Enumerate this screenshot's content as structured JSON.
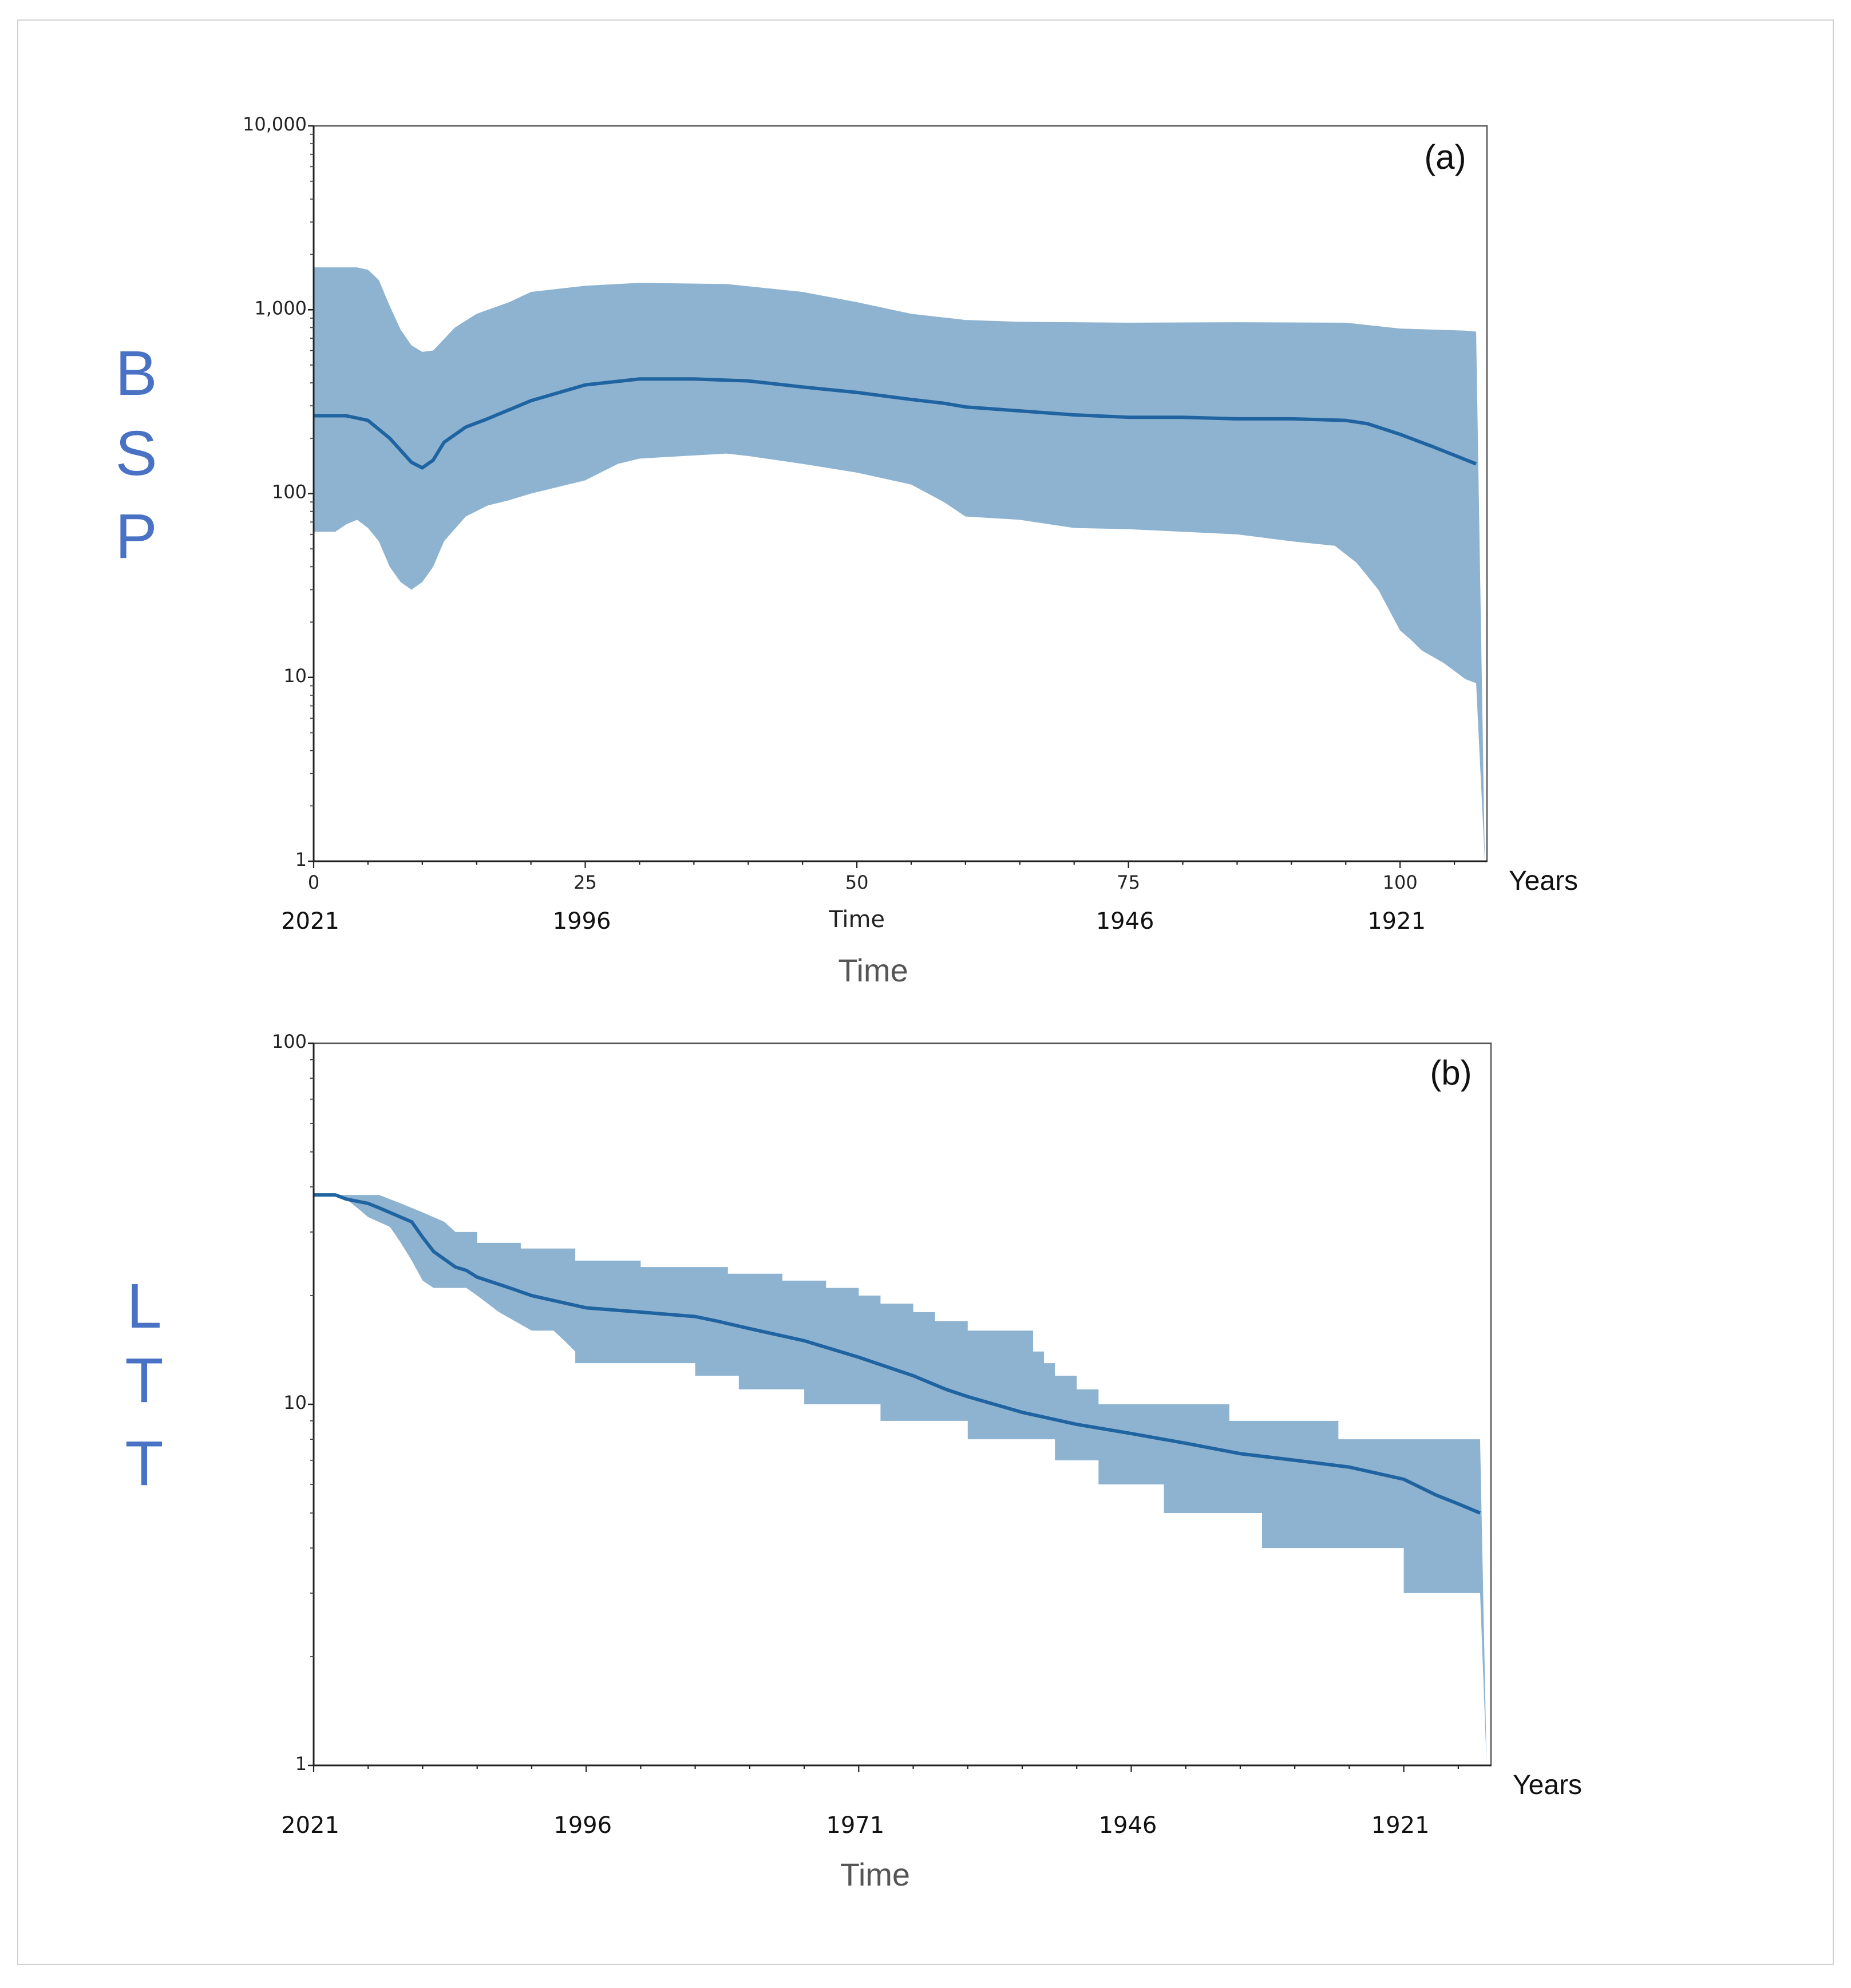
{
  "chart_data": [
    {
      "type": "area",
      "panel_label": "(a)",
      "side_label": [
        "B",
        "S",
        "P"
      ],
      "y_scale": "log",
      "ylim": [
        1,
        10000
      ],
      "y_ticks": [
        {
          "v": 1,
          "label": "1"
        },
        {
          "v": 10,
          "label": "10"
        },
        {
          "v": 100,
          "label": "100"
        },
        {
          "v": 1000,
          "label": "1,000"
        },
        {
          "v": 10000,
          "label": "10,000"
        }
      ],
      "xlim": [
        0,
        108
      ],
      "x_ticks": [
        {
          "v": 0,
          "label": "0"
        },
        {
          "v": 25,
          "label": "25"
        },
        {
          "v": 50,
          "label": "50"
        },
        {
          "v": 75,
          "label": "75"
        },
        {
          "v": 100,
          "label": "100"
        }
      ],
      "year_labels": [
        {
          "v": 0,
          "label": "2021"
        },
        {
          "v": 25,
          "label": "1996"
        },
        {
          "v": 75,
          "label": "1946"
        },
        {
          "v": 100,
          "label": "1921"
        }
      ],
      "inner_time_label": "Time",
      "x_unit": "Years",
      "xlabel": "Time",
      "series": [
        {
          "name": "median",
          "points": [
            [
              0,
              265
            ],
            [
              3,
              265
            ],
            [
              5,
              250
            ],
            [
              7,
              200
            ],
            [
              9,
              148
            ],
            [
              10,
              138
            ],
            [
              11,
              152
            ],
            [
              12,
              190
            ],
            [
              14,
              230
            ],
            [
              16,
              255
            ],
            [
              20,
              320
            ],
            [
              25,
              390
            ],
            [
              30,
              420
            ],
            [
              35,
              420
            ],
            [
              40,
              410
            ],
            [
              45,
              380
            ],
            [
              50,
              355
            ],
            [
              55,
              325
            ],
            [
              58,
              310
            ],
            [
              60,
              296
            ],
            [
              70,
              268
            ],
            [
              75,
              260
            ],
            [
              80,
              260
            ],
            [
              85,
              255
            ],
            [
              90,
              255
            ],
            [
              95,
              250
            ],
            [
              97,
              240
            ],
            [
              100,
              210
            ],
            [
              103,
              180
            ],
            [
              107,
              145
            ]
          ]
        },
        {
          "name": "upper_95_hpd",
          "points": [
            [
              0,
              1700
            ],
            [
              4,
              1700
            ],
            [
              5,
              1650
            ],
            [
              6,
              1450
            ],
            [
              7,
              1050
            ],
            [
              8,
              780
            ],
            [
              9,
              640
            ],
            [
              10,
              590
            ],
            [
              11,
              600
            ],
            [
              13,
              800
            ],
            [
              15,
              950
            ],
            [
              18,
              1100
            ],
            [
              20,
              1250
            ],
            [
              25,
              1350
            ],
            [
              30,
              1400
            ],
            [
              38,
              1380
            ],
            [
              45,
              1250
            ],
            [
              50,
              1100
            ],
            [
              55,
              950
            ],
            [
              60,
              880
            ],
            [
              65,
              860
            ],
            [
              75,
              850
            ],
            [
              85,
              855
            ],
            [
              95,
              850
            ],
            [
              100,
              790
            ],
            [
              106,
              770
            ],
            [
              107,
              760
            ]
          ]
        },
        {
          "name": "lower_95_hpd",
          "points": [
            [
              0,
              62
            ],
            [
              2,
              62
            ],
            [
              3,
              68
            ],
            [
              4,
              72
            ],
            [
              5,
              65
            ],
            [
              6,
              55
            ],
            [
              7,
              40
            ],
            [
              8,
              33
            ],
            [
              9,
              30
            ],
            [
              10,
              33
            ],
            [
              11,
              40
            ],
            [
              12,
              55
            ],
            [
              14,
              75
            ],
            [
              16,
              86
            ],
            [
              18,
              92
            ],
            [
              20,
              100
            ],
            [
              25,
              118
            ],
            [
              28,
              145
            ],
            [
              30,
              155
            ],
            [
              38,
              165
            ],
            [
              40,
              160
            ],
            [
              45,
              145
            ],
            [
              50,
              130
            ],
            [
              55,
              112
            ],
            [
              58,
              90
            ],
            [
              60,
              75
            ],
            [
              65,
              72
            ],
            [
              70,
              65
            ],
            [
              75,
              64
            ],
            [
              85,
              60
            ],
            [
              90,
              55
            ],
            [
              94,
              52
            ],
            [
              96,
              42
            ],
            [
              98,
              30
            ],
            [
              100,
              18
            ],
            [
              101,
              16
            ],
            [
              102,
              14
            ],
            [
              104,
              12
            ],
            [
              106,
              9.8
            ],
            [
              107,
              9.3
            ],
            [
              107.8,
              1
            ]
          ]
        }
      ]
    },
    {
      "type": "area",
      "panel_label": "(b)",
      "side_label": [
        "L",
        "T",
        "T"
      ],
      "y_scale": "log",
      "ylim": [
        1,
        100
      ],
      "y_ticks": [
        {
          "v": 1,
          "label": "1"
        },
        {
          "v": 10,
          "label": "10"
        },
        {
          "v": 100,
          "label": "100"
        }
      ],
      "xlim": [
        0,
        108
      ],
      "year_labels": [
        {
          "v": 0,
          "label": "2021"
        },
        {
          "v": 25,
          "label": "1996"
        },
        {
          "v": 50,
          "label": "1971"
        },
        {
          "v": 75,
          "label": "1946"
        },
        {
          "v": 100,
          "label": "1921"
        }
      ],
      "x_unit": "Years",
      "xlabel": "Time",
      "series": [
        {
          "name": "median",
          "points": [
            [
              0,
              38
            ],
            [
              2,
              38
            ],
            [
              3,
              37
            ],
            [
              5,
              36
            ],
            [
              6,
              35
            ],
            [
              9,
              32
            ],
            [
              10,
              29
            ],
            [
              11,
              26.5
            ],
            [
              13,
              24
            ],
            [
              14,
              23.5
            ],
            [
              15,
              22.5
            ],
            [
              18,
              21
            ],
            [
              20,
              20
            ],
            [
              25,
              18.5
            ],
            [
              30,
              18
            ],
            [
              35,
              17.5
            ],
            [
              37,
              17
            ],
            [
              40,
              16.2
            ],
            [
              45,
              15
            ],
            [
              50,
              13.5
            ],
            [
              55,
              12
            ],
            [
              58,
              11
            ],
            [
              60,
              10.5
            ],
            [
              65,
              9.5
            ],
            [
              70,
              8.8
            ],
            [
              75,
              8.3
            ],
            [
              80,
              7.8
            ],
            [
              85,
              7.3
            ],
            [
              90,
              7
            ],
            [
              95,
              6.7
            ],
            [
              100,
              6.2
            ],
            [
              103,
              5.6
            ],
            [
              105,
              5.3
            ],
            [
              107,
              5
            ]
          ]
        },
        {
          "name": "upper_95_hpd",
          "points": [
            [
              0,
              38
            ],
            [
              6,
              38
            ],
            [
              8,
              36
            ],
            [
              10,
              34
            ],
            [
              12,
              32
            ],
            [
              13,
              30
            ],
            [
              15,
              30
            ],
            [
              15,
              28
            ],
            [
              19,
              28
            ],
            [
              19,
              27
            ],
            [
              24,
              27
            ],
            [
              24,
              25
            ],
            [
              30,
              25
            ],
            [
              30,
              24
            ],
            [
              34,
              24
            ],
            [
              38,
              24
            ],
            [
              38,
              23
            ],
            [
              43,
              23
            ],
            [
              43,
              22
            ],
            [
              47,
              22
            ],
            [
              47,
              21
            ],
            [
              50,
              21
            ],
            [
              50,
              20
            ],
            [
              52,
              20
            ],
            [
              52,
              19
            ],
            [
              55,
              19
            ],
            [
              55,
              18
            ],
            [
              57,
              18
            ],
            [
              57,
              17
            ],
            [
              60,
              17
            ],
            [
              60,
              16
            ],
            [
              66,
              16
            ],
            [
              66,
              14
            ],
            [
              67,
              14
            ],
            [
              67,
              13
            ],
            [
              68,
              13
            ],
            [
              68,
              12
            ],
            [
              70,
              12
            ],
            [
              70,
              11
            ],
            [
              72,
              11
            ],
            [
              72,
              10
            ],
            [
              75,
              10
            ],
            [
              80,
              10
            ],
            [
              84,
              10
            ],
            [
              84,
              9
            ],
            [
              88,
              9
            ],
            [
              94,
              9
            ],
            [
              94,
              8
            ],
            [
              98,
              8
            ],
            [
              107,
              8
            ]
          ]
        },
        {
          "name": "lower_95_hpd",
          "points": [
            [
              0,
              38
            ],
            [
              2,
              38
            ],
            [
              3,
              37
            ],
            [
              4,
              35
            ],
            [
              5,
              33
            ],
            [
              7,
              31
            ],
            [
              8,
              28
            ],
            [
              9,
              25
            ],
            [
              10,
              22
            ],
            [
              11,
              21
            ],
            [
              14,
              21
            ],
            [
              15,
              20
            ],
            [
              17,
              18
            ],
            [
              20,
              16
            ],
            [
              22,
              16
            ],
            [
              23,
              15
            ],
            [
              24,
              14
            ],
            [
              24,
              13
            ],
            [
              28,
              13
            ],
            [
              33,
              13
            ],
            [
              35,
              13
            ],
            [
              35,
              12
            ],
            [
              39,
              12
            ],
            [
              39,
              11
            ],
            [
              43,
              11
            ],
            [
              45,
              11
            ],
            [
              45,
              10
            ],
            [
              50,
              10
            ],
            [
              52,
              10
            ],
            [
              52,
              9
            ],
            [
              56,
              9
            ],
            [
              60,
              9
            ],
            [
              60,
              8
            ],
            [
              68,
              8
            ],
            [
              68,
              7
            ],
            [
              72,
              7
            ],
            [
              72,
              6
            ],
            [
              78,
              6
            ],
            [
              78,
              5
            ],
            [
              84,
              5
            ],
            [
              87,
              5
            ],
            [
              87,
              4
            ],
            [
              90,
              4
            ],
            [
              94,
              4
            ],
            [
              100,
              4
            ],
            [
              100,
              3
            ],
            [
              104,
              3
            ],
            [
              107,
              3
            ],
            [
              107.6,
              1
            ]
          ]
        }
      ]
    }
  ]
}
